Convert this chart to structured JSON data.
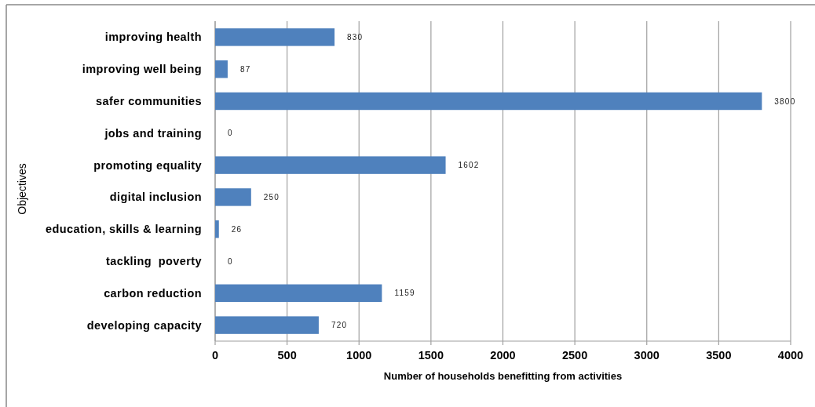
{
  "chart_data": {
    "type": "bar",
    "orientation": "horizontal",
    "categories": [
      "improving health",
      "improving well being",
      "safer communities",
      "jobs and training",
      "promoting equality",
      "digital inclusion",
      "education, skills & learning",
      "tackling  poverty",
      "carbon reduction",
      "developing capacity"
    ],
    "values": [
      830,
      87,
      3800,
      0,
      1602,
      250,
      26,
      0,
      1159,
      720
    ],
    "color": "#4f81bd",
    "xlabel": "Number of households benefitting from activities",
    "ylabel": "Objectives",
    "xlim": [
      0,
      4000
    ],
    "xticks": [
      0,
      500,
      1000,
      1500,
      2000,
      2500,
      3000,
      3500,
      4000
    ],
    "grid": "x",
    "data_labels": true
  }
}
